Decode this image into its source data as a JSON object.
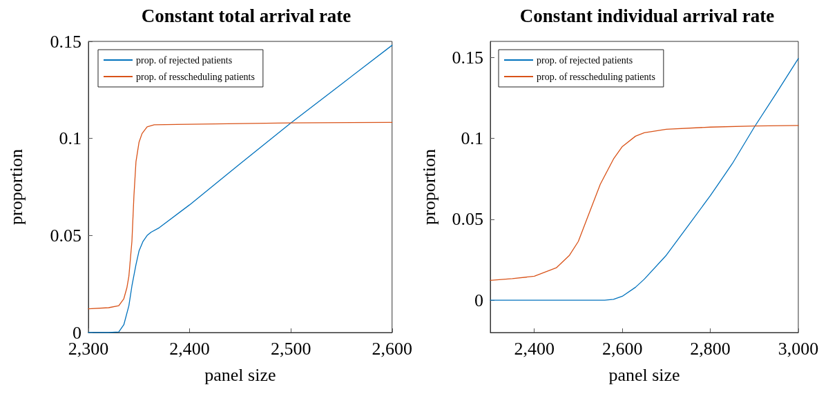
{
  "chart_data": [
    {
      "type": "line",
      "title": "Constant total arrival rate",
      "xlabel": "panel size",
      "ylabel": "proportion",
      "xlim": [
        2300,
        2600
      ],
      "xticks": [
        {
          "value": 2300,
          "label": "2,300"
        },
        {
          "value": 2400,
          "label": "2,400"
        },
        {
          "value": 2500,
          "label": "2,500"
        },
        {
          "value": 2600,
          "label": "2,600"
        }
      ],
      "ylim": [
        0,
        0.15
      ],
      "yticks": [
        0,
        0.05,
        0.1,
        0.15
      ],
      "grid": false,
      "legend": "top left",
      "marker": "none",
      "line_style": "solid",
      "series": [
        {
          "name": "prop. of rejected patients",
          "color": "#0072bd",
          "x": [
            2300,
            2320,
            2330,
            2335,
            2340,
            2343,
            2347,
            2350,
            2354,
            2358,
            2362,
            2370,
            2400,
            2450,
            2500,
            2550,
            2600
          ],
          "values": [
            0,
            0,
            0.0003,
            0.004,
            0.0138,
            0.024,
            0.035,
            0.042,
            0.047,
            0.05,
            0.0517,
            0.054,
            0.0658,
            0.087,
            0.108,
            0.128,
            0.148
          ]
        },
        {
          "name": "prop. of resscheduling patients",
          "color": "#d95319",
          "x": [
            2300,
            2320,
            2330,
            2335,
            2338,
            2340,
            2343,
            2345,
            2347,
            2350,
            2353,
            2358,
            2365,
            2400,
            2500,
            2600
          ],
          "values": [
            0.0122,
            0.0128,
            0.0138,
            0.0174,
            0.023,
            0.029,
            0.047,
            0.0706,
            0.088,
            0.098,
            0.1025,
            0.106,
            0.107,
            0.1073,
            0.108,
            0.1083
          ]
        }
      ]
    },
    {
      "type": "line",
      "title": "Constant individual arrival rate",
      "xlabel": "panel size",
      "ylabel": "proportion",
      "xlim": [
        2300,
        3000
      ],
      "xticks": [
        {
          "value": 2400,
          "label": "2,400"
        },
        {
          "value": 2600,
          "label": "2,600"
        },
        {
          "value": 2800,
          "label": "2,800"
        },
        {
          "value": 3000,
          "label": "3,000"
        }
      ],
      "ylim": [
        -0.02,
        0.16
      ],
      "yticks": [
        0,
        0.05,
        0.1,
        0.15
      ],
      "grid": false,
      "legend": "top left",
      "marker": "none",
      "line_style": "solid",
      "series": [
        {
          "name": "prop. of rejected patients",
          "color": "#0072bd",
          "x": [
            2300,
            2400,
            2500,
            2560,
            2580,
            2600,
            2630,
            2650,
            2700,
            2750,
            2800,
            2850,
            2900,
            2950,
            3000
          ],
          "values": [
            0,
            0,
            0,
            0,
            0.0005,
            0.0024,
            0.008,
            0.013,
            0.0278,
            0.0462,
            0.0646,
            0.0844,
            0.107,
            0.128,
            0.1494
          ]
        },
        {
          "name": "prop. of resscheduling patients",
          "color": "#d95319",
          "x": [
            2300,
            2350,
            2400,
            2450,
            2480,
            2500,
            2520,
            2550,
            2580,
            2600,
            2630,
            2650,
            2700,
            2800,
            2900,
            3000
          ],
          "values": [
            0.0123,
            0.0133,
            0.0148,
            0.02,
            0.0278,
            0.0363,
            0.0505,
            0.0717,
            0.0873,
            0.095,
            0.1014,
            0.1035,
            0.1057,
            0.107,
            0.1077,
            0.108
          ]
        }
      ]
    }
  ]
}
